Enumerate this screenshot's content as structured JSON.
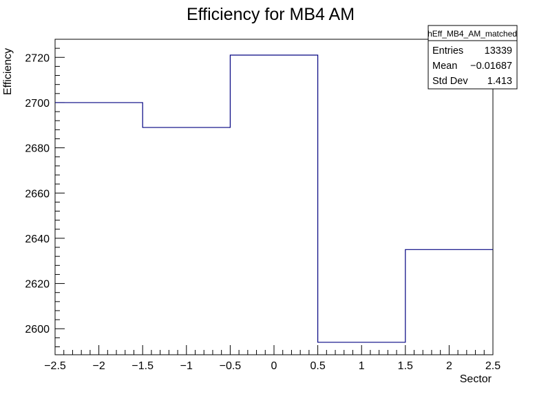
{
  "chart_data": {
    "type": "histogram",
    "title": "Efficiency for MB4 AM",
    "xlabel": "Sector",
    "ylabel": "Efficiency",
    "xlim": [
      -2.5,
      2.5
    ],
    "ylim": [
      2588.5,
      2728
    ],
    "bin_edges": [
      -2.5,
      -1.5,
      -0.5,
      0.5,
      1.5,
      2.5
    ],
    "values": [
      2700,
      2689,
      2721,
      2594,
      2635
    ],
    "line_color": "#000080",
    "x_ticks": [
      {
        "v": -2.5,
        "label": "−2.5"
      },
      {
        "v": -2,
        "label": "−2"
      },
      {
        "v": -1.5,
        "label": "−1.5"
      },
      {
        "v": -1,
        "label": "−1"
      },
      {
        "v": -0.5,
        "label": "−0.5"
      },
      {
        "v": 0,
        "label": "0"
      },
      {
        "v": 0.5,
        "label": "0.5"
      },
      {
        "v": 1,
        "label": "1"
      },
      {
        "v": 1.5,
        "label": "1.5"
      },
      {
        "v": 2,
        "label": "2"
      },
      {
        "v": 2.5,
        "label": "2.5"
      }
    ],
    "y_ticks": [
      {
        "v": 2600,
        "label": "2600"
      },
      {
        "v": 2620,
        "label": "2620"
      },
      {
        "v": 2640,
        "label": "2640"
      },
      {
        "v": 2660,
        "label": "2660"
      },
      {
        "v": 2680,
        "label": "2680"
      },
      {
        "v": 2700,
        "label": "2700"
      },
      {
        "v": 2720,
        "label": "2720"
      }
    ],
    "stats_box": {
      "name": "hEff_MB4_AM_matched",
      "rows": [
        {
          "label": "Entries",
          "value": "13339"
        },
        {
          "label": "Mean",
          "value": "−0.01687"
        },
        {
          "label": "Std Dev",
          "value": "1.413"
        }
      ]
    }
  }
}
